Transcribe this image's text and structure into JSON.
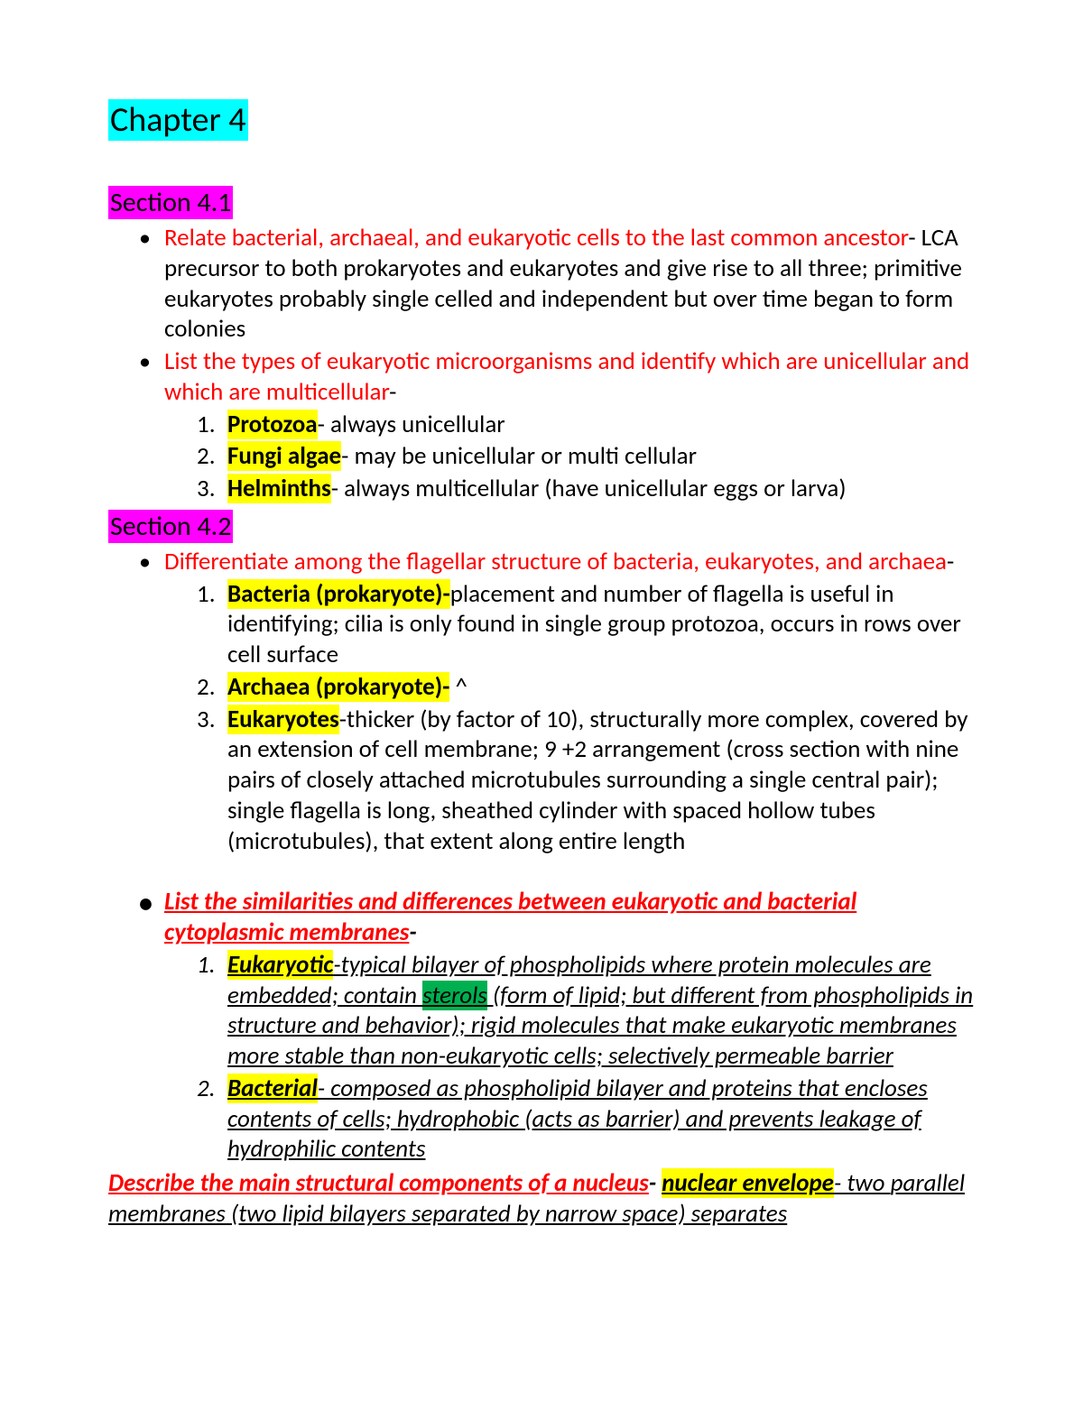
{
  "colors": {
    "highlight_cyan": "#00ffff",
    "highlight_magenta": "#ff00ff",
    "highlight_yellow": "#ffff00",
    "highlight_green": "#00b050",
    "text_red": "#ff0000",
    "text_black": "#000000",
    "background": "#ffffff"
  },
  "typography": {
    "font_family": "Calibri",
    "title_fontsize_pt": 28,
    "section_fontsize_pt": 22,
    "body_fontsize_pt": 20,
    "line_height": 1.25
  },
  "chapter": {
    "title": "Chapter 4"
  },
  "section41": {
    "title": "Section 4.1",
    "b1_head": "Relate bacterial, archaeal, and eukaryotic cells to the last common ancestor",
    "b1_rest": "- LCA precursor to both prokaryotes and eukaryotes and give rise to all three; primitive eukaryotes probably single celled and independent but over time began to form colonies",
    "b2_head": "List the types of eukaryotic microorganisms and identify which are unicellular and which are multicellular",
    "b2_dash": "-",
    "s1_term": "Protozoa",
    "s1_rest": "- always unicellular",
    "s2_term": "Fungi algae",
    "s2_rest": "- may be unicellular or multi cellular",
    "s3_term": "Helminths",
    "s3_rest": "- always multicellular (have unicellular eggs or larva)"
  },
  "section42": {
    "title": "Section 4.2",
    "b1_head": "Differentiate among the flagellar structure of bacteria, eukaryotes, and archaea",
    "b1_dash": "-",
    "s1_term": "Bacteria (prokaryote)-",
    "s1_rest": "placement and number of flagella is useful in identifying; cilia is only found in single group protozoa, occurs in rows over cell surface",
    "s2_term": "Archaea (prokaryote)-",
    "s2_rest": " ^",
    "s3_term": "Eukaryotes",
    "s3_rest": "-thicker (by factor of 10), structurally more complex, covered by an extension of cell membrane; 9 +2 arrangement (cross section with nine pairs of closely attached microtubules surrounding a single central pair); single flagella is long, sheathed cylinder with spaced hollow tubes (microtubules), that extent along entire length",
    "b2_head": "List the similarities and differences between eukaryotic and bacterial cytoplasmic membranes",
    "b2_dash": "-",
    "m1_term": "Eukaryotic",
    "m1_a": "-typical bilayer of phospholipids where protein molecules are embedded; contain ",
    "m1_sterols": "sterols",
    "m1_b": " (form of lipid; but different from phospholipids in structure and behavior); rigid molecules that make eukaryotic membranes more stable than non-eukaryotic cells; selectively permeable barrier",
    "m2_term": "Bacterial",
    "m2_rest": "- composed as phospholipid bilayer and proteins that encloses contents of cells; hydrophobic (acts as barrier) and prevents leakage of hydrophilic contents"
  },
  "footer": {
    "head": "Describe the main structural components of a nucleus",
    "dash": "- ",
    "env": "nuclear envelope",
    "rest1": "- two ",
    "rest2": "parallel membranes (two lipid bilayers separated by narrow space) separates"
  }
}
